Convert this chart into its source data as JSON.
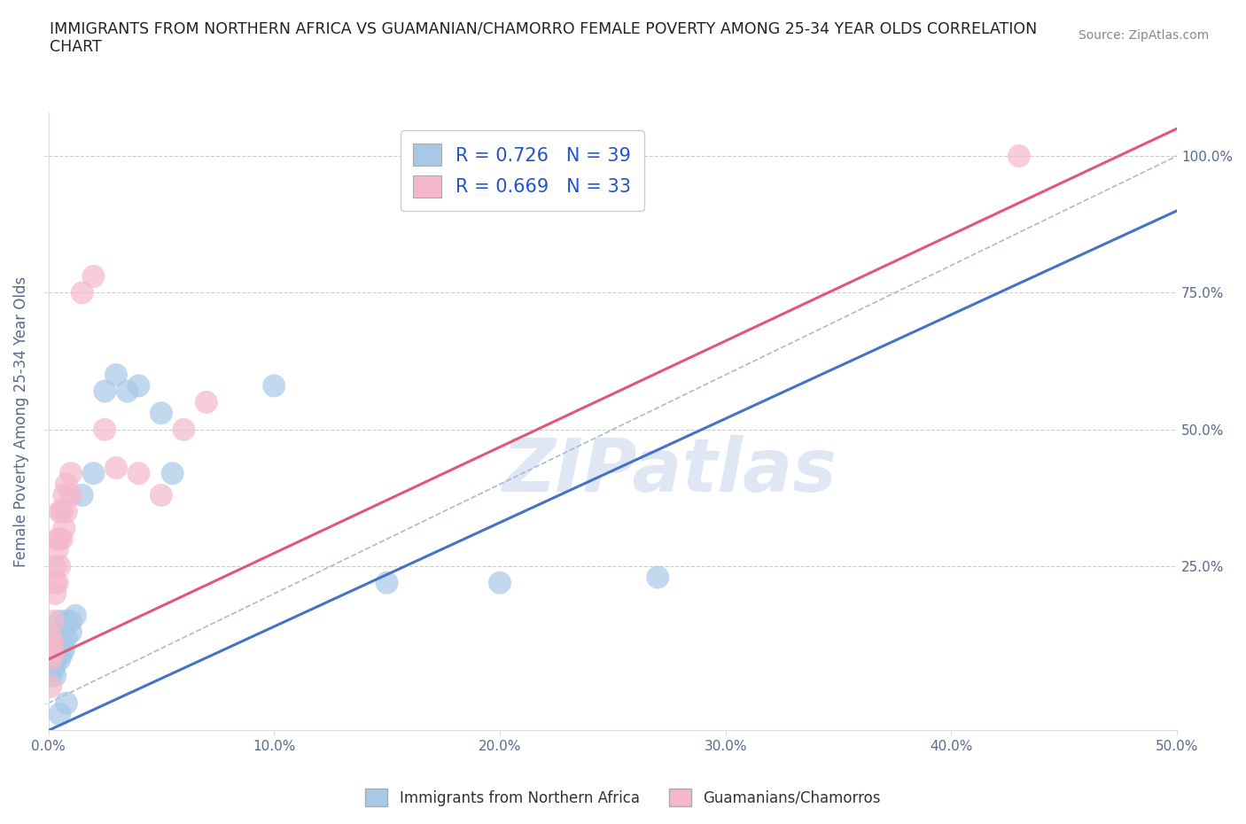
{
  "title": "IMMIGRANTS FROM NORTHERN AFRICA VS GUAMANIAN/CHAMORRO FEMALE POVERTY AMONG 25-34 YEAR OLDS CORRELATION\nCHART",
  "source": "Source: ZipAtlas.com",
  "ylabel": "Female Poverty Among 25-34 Year Olds",
  "xlim": [
    0,
    0.5
  ],
  "ylim": [
    -0.05,
    1.08
  ],
  "xticks": [
    0.0,
    0.1,
    0.2,
    0.3,
    0.4,
    0.5
  ],
  "yticks": [
    0.0,
    0.25,
    0.5,
    0.75,
    1.0
  ],
  "xticklabels": [
    "0.0%",
    "10.0%",
    "20.0%",
    "30.0%",
    "40.0%",
    "50.0%"
  ],
  "right_yticklabels": [
    "",
    "25.0%",
    "50.0%",
    "75.0%",
    "100.0%"
  ],
  "legend_r1": "R = 0.726   N = 39",
  "legend_r2": "R = 0.669   N = 33",
  "blue_color": "#a8c8e8",
  "pink_color": "#f4b8ca",
  "blue_line_color": "#4472c4",
  "pink_line_color": "#e05878",
  "blue_scatter": [
    [
      0.001,
      0.05
    ],
    [
      0.001,
      0.08
    ],
    [
      0.001,
      0.1
    ],
    [
      0.001,
      0.12
    ],
    [
      0.002,
      0.06
    ],
    [
      0.002,
      0.09
    ],
    [
      0.002,
      0.11
    ],
    [
      0.003,
      0.07
    ],
    [
      0.003,
      0.08
    ],
    [
      0.003,
      0.05
    ],
    [
      0.004,
      0.09
    ],
    [
      0.004,
      0.1
    ],
    [
      0.004,
      0.12
    ],
    [
      0.005,
      0.08
    ],
    [
      0.005,
      0.1
    ],
    [
      0.005,
      0.15
    ],
    [
      0.006,
      0.09
    ],
    [
      0.006,
      0.11
    ],
    [
      0.007,
      0.1
    ],
    [
      0.007,
      0.13
    ],
    [
      0.008,
      0.12
    ],
    [
      0.008,
      0.15
    ],
    [
      0.01,
      0.13
    ],
    [
      0.01,
      0.15
    ],
    [
      0.012,
      0.16
    ],
    [
      0.015,
      0.38
    ],
    [
      0.02,
      0.42
    ],
    [
      0.025,
      0.57
    ],
    [
      0.03,
      0.6
    ],
    [
      0.035,
      0.57
    ],
    [
      0.04,
      0.58
    ],
    [
      0.05,
      0.53
    ],
    [
      0.055,
      0.42
    ],
    [
      0.008,
      0.0
    ],
    [
      0.1,
      0.58
    ],
    [
      0.15,
      0.22
    ],
    [
      0.2,
      0.22
    ],
    [
      0.27,
      0.23
    ],
    [
      0.005,
      -0.02
    ]
  ],
  "pink_scatter": [
    [
      0.001,
      0.08
    ],
    [
      0.001,
      0.1
    ],
    [
      0.001,
      0.12
    ],
    [
      0.002,
      0.09
    ],
    [
      0.002,
      0.11
    ],
    [
      0.002,
      0.15
    ],
    [
      0.003,
      0.2
    ],
    [
      0.003,
      0.22
    ],
    [
      0.003,
      0.25
    ],
    [
      0.004,
      0.22
    ],
    [
      0.004,
      0.28
    ],
    [
      0.004,
      0.3
    ],
    [
      0.005,
      0.25
    ],
    [
      0.005,
      0.3
    ],
    [
      0.005,
      0.35
    ],
    [
      0.006,
      0.3
    ],
    [
      0.006,
      0.35
    ],
    [
      0.007,
      0.32
    ],
    [
      0.007,
      0.38
    ],
    [
      0.008,
      0.35
    ],
    [
      0.008,
      0.4
    ],
    [
      0.01,
      0.38
    ],
    [
      0.01,
      0.42
    ],
    [
      0.015,
      0.75
    ],
    [
      0.02,
      0.78
    ],
    [
      0.025,
      0.5
    ],
    [
      0.03,
      0.43
    ],
    [
      0.04,
      0.42
    ],
    [
      0.05,
      0.38
    ],
    [
      0.06,
      0.5
    ],
    [
      0.07,
      0.55
    ],
    [
      0.43,
      1.0
    ],
    [
      0.001,
      0.03
    ]
  ],
  "blue_regression": [
    0.0,
    -0.05,
    0.5,
    0.9
  ],
  "pink_regression": [
    0.0,
    0.08,
    0.5,
    1.05
  ],
  "watermark": "ZIPatlas",
  "background_color": "#ffffff",
  "grid_color": "#cccccc",
  "axis_label_color": "#5a6a8a",
  "tick_color": "#5a6a8a",
  "legend_label_color": "#2255cc"
}
